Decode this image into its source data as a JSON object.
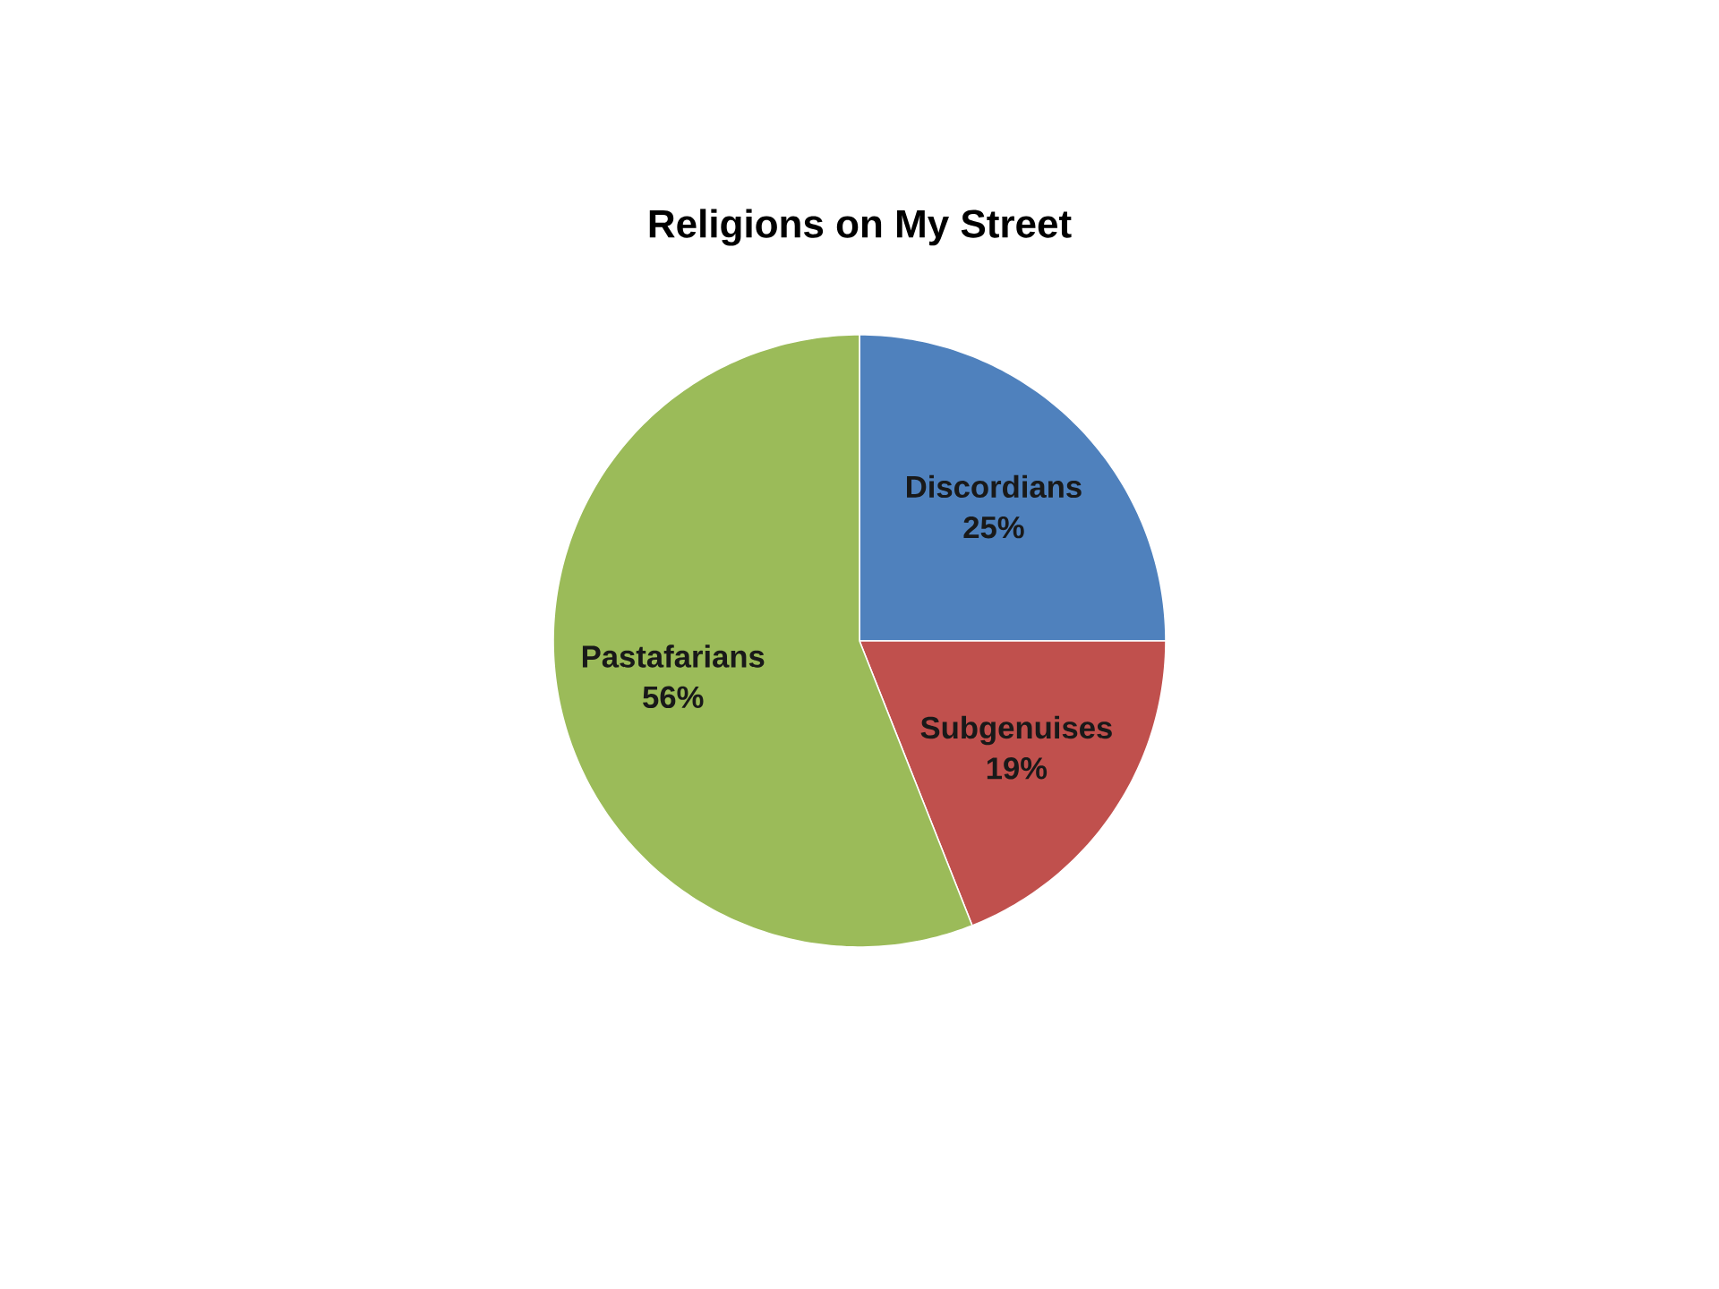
{
  "chart_data": {
    "type": "pie",
    "title": "Religions on My Street",
    "categories": [
      "Discordians",
      "Subgenuises",
      "Pastafarians"
    ],
    "values": [
      25,
      19,
      56
    ],
    "value_labels": [
      "25%",
      "19%",
      "56%"
    ],
    "colors": [
      "#4f81bd",
      "#c0504d",
      "#9bbb59"
    ]
  }
}
